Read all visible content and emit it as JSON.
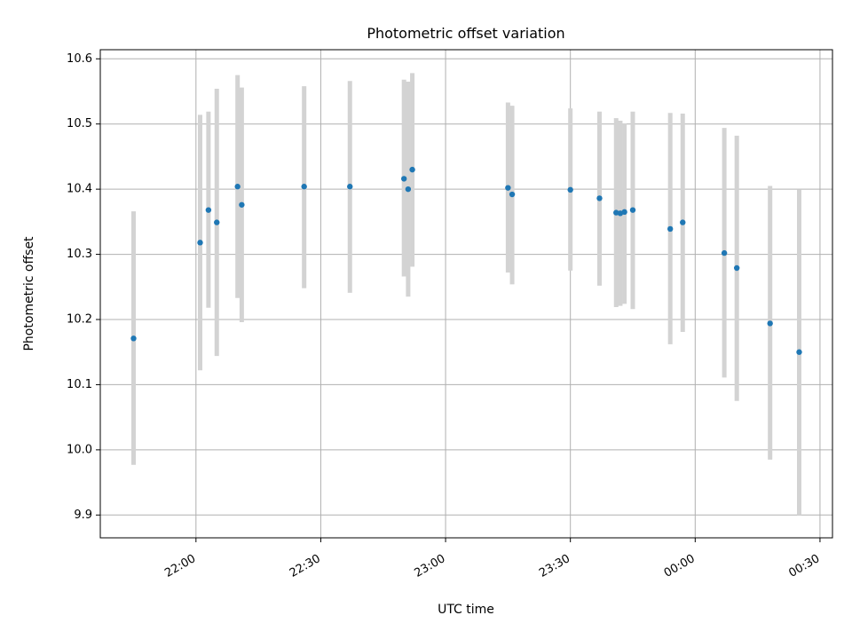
{
  "chart_data": {
    "type": "scatter",
    "title": "Photometric offset variation",
    "xlabel": "UTC time",
    "ylabel": "Photometric offset",
    "x_axis_type": "time",
    "x_ticks": [
      {
        "value": "22:00",
        "label": "22:00"
      },
      {
        "value": "22:30",
        "label": "22:30"
      },
      {
        "value": "23:00",
        "label": "23:00"
      },
      {
        "value": "23:30",
        "label": "23:30"
      },
      {
        "value": "24:00",
        "label": "00:00"
      },
      {
        "value": "24:30",
        "label": "00:30"
      }
    ],
    "xlim": [
      "21:37",
      "24:33"
    ],
    "y_ticks": [
      9.9,
      10.0,
      10.1,
      10.2,
      10.3,
      10.4,
      10.5,
      10.6
    ],
    "y_tick_labels": [
      "9.9",
      "10.0",
      "10.1",
      "10.2",
      "10.3",
      "10.4",
      "10.5",
      "10.6"
    ],
    "ylim": [
      9.865,
      10.614
    ],
    "grid": true,
    "marker_color": "#1f77b4",
    "errorbar_color": "#d3d3d3",
    "points": [
      {
        "x": "21:45",
        "y": 10.171,
        "ylo": 9.977,
        "yhi": 10.366
      },
      {
        "x": "22:01",
        "y": 10.318,
        "ylo": 10.122,
        "yhi": 10.514
      },
      {
        "x": "22:03",
        "y": 10.368,
        "ylo": 10.218,
        "yhi": 10.519
      },
      {
        "x": "22:05",
        "y": 10.349,
        "ylo": 10.144,
        "yhi": 10.554
      },
      {
        "x": "22:10",
        "y": 10.404,
        "ylo": 10.233,
        "yhi": 10.575
      },
      {
        "x": "22:11",
        "y": 10.376,
        "ylo": 10.196,
        "yhi": 10.556
      },
      {
        "x": "22:26",
        "y": 10.404,
        "ylo": 10.248,
        "yhi": 10.558
      },
      {
        "x": "22:37",
        "y": 10.404,
        "ylo": 10.241,
        "yhi": 10.566
      },
      {
        "x": "22:50",
        "y": 10.416,
        "ylo": 10.266,
        "yhi": 10.568
      },
      {
        "x": "22:51",
        "y": 10.4,
        "ylo": 10.235,
        "yhi": 10.565
      },
      {
        "x": "22:52",
        "y": 10.43,
        "ylo": 10.281,
        "yhi": 10.578
      },
      {
        "x": "23:15",
        "y": 10.402,
        "ylo": 10.272,
        "yhi": 10.533
      },
      {
        "x": "23:16",
        "y": 10.392,
        "ylo": 10.254,
        "yhi": 10.528
      },
      {
        "x": "23:30",
        "y": 10.399,
        "ylo": 10.275,
        "yhi": 10.524
      },
      {
        "x": "23:37",
        "y": 10.386,
        "ylo": 10.252,
        "yhi": 10.519
      },
      {
        "x": "23:41",
        "y": 10.364,
        "ylo": 10.219,
        "yhi": 10.509
      },
      {
        "x": "23:42",
        "y": 10.363,
        "ylo": 10.221,
        "yhi": 10.505
      },
      {
        "x": "23:43",
        "y": 10.365,
        "ylo": 10.224,
        "yhi": 10.501
      },
      {
        "x": "23:45",
        "y": 10.368,
        "ylo": 10.216,
        "yhi": 10.519
      },
      {
        "x": "23:54",
        "y": 10.339,
        "ylo": 10.162,
        "yhi": 10.517
      },
      {
        "x": "23:57",
        "y": 10.349,
        "ylo": 10.181,
        "yhi": 10.516
      },
      {
        "x": "24:07",
        "y": 10.302,
        "ylo": 10.111,
        "yhi": 10.494
      },
      {
        "x": "24:10",
        "y": 10.279,
        "ylo": 10.075,
        "yhi": 10.482
      },
      {
        "x": "24:18",
        "y": 10.194,
        "ylo": 9.985,
        "yhi": 10.405
      },
      {
        "x": "24:25",
        "y": 10.15,
        "ylo": 9.9,
        "yhi": 10.399
      }
    ]
  }
}
